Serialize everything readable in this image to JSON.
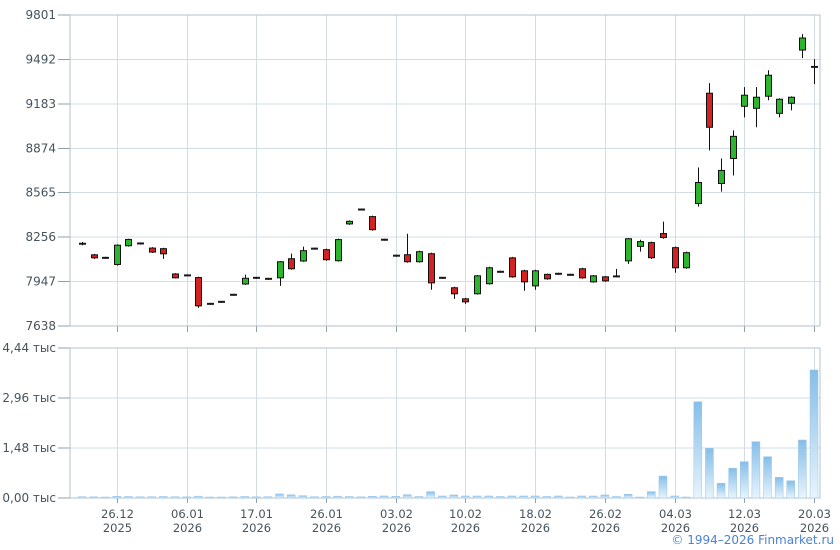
{
  "copyright": "© 1994–2026 Finmarket.ru",
  "colors": {
    "background": "#ffffff",
    "grid": "#d3dde4",
    "border": "#b3c3ce",
    "tick": "#8da0ab",
    "axis_text": "#46535c",
    "up": "#2db52d",
    "down": "#d32222",
    "wick": "#111111",
    "doji": "#1a1a1a",
    "volume_top": "#85bee9",
    "volume_bottom": "#e8f4fc",
    "volume_stroke": "#9dc6e8",
    "copyright_text": "#4a82d9"
  },
  "chart_data": {
    "type": "candlestick",
    "subtype": "price-panel-with-volume-panel",
    "title": "",
    "legend": [],
    "grid": true,
    "price_axis": {
      "max": 9801,
      "min": 7638,
      "ticks": [
        9801,
        9492,
        9183,
        8874,
        8565,
        8256,
        7947,
        7638
      ]
    },
    "volume_axis": {
      "max": 4440,
      "ticks": [
        {
          "label": "4,44 тыс",
          "value": 4440
        },
        {
          "label": "2,96 тыс",
          "value": 2960
        },
        {
          "label": "1,48 тыс",
          "value": 1480
        },
        {
          "label": "0,00 тыс",
          "value": 0
        }
      ]
    },
    "x_ticks": [
      {
        "line1": "26.12",
        "line2": "2025",
        "candle_index": 3
      },
      {
        "line1": "06.01",
        "line2": "2026",
        "candle_index": 9
      },
      {
        "line1": "17.01",
        "line2": "2026",
        "candle_index": 15
      },
      {
        "line1": "26.01",
        "line2": "2026",
        "candle_index": 21
      },
      {
        "line1": "03.02",
        "line2": "2026",
        "candle_index": 27
      },
      {
        "line1": "10.02",
        "line2": "2026",
        "candle_index": 33
      },
      {
        "line1": "18.02",
        "line2": "2026",
        "candle_index": 39
      },
      {
        "line1": "26.02",
        "line2": "2026",
        "candle_index": 45
      },
      {
        "line1": "04.03",
        "line2": "2026",
        "candle_index": 51
      },
      {
        "line1": "12.03",
        "line2": "2026",
        "candle_index": 57
      },
      {
        "line1": "20.03",
        "line2": "2026",
        "candle_index": 63
      }
    ],
    "candles_format": "[open, high, low, close, volume]",
    "candles": [
      [
        8210,
        8222,
        8200,
        8210,
        40
      ],
      [
        8133,
        8140,
        8105,
        8112,
        35
      ],
      [
        8112,
        8120,
        8104,
        8112,
        30
      ],
      [
        8066,
        8206,
        8058,
        8200,
        50
      ],
      [
        8196,
        8245,
        8190,
        8240,
        45
      ],
      [
        8212,
        8220,
        8204,
        8212,
        35
      ],
      [
        8180,
        8187,
        8146,
        8152,
        40
      ],
      [
        8176,
        8182,
        8105,
        8140,
        45
      ],
      [
        8000,
        8006,
        7968,
        7973,
        40
      ],
      [
        7990,
        7997,
        7983,
        7990,
        35
      ],
      [
        7975,
        7981,
        7764,
        7778,
        55
      ],
      [
        7792,
        7799,
        7785,
        7792,
        30
      ],
      [
        7806,
        7813,
        7799,
        7806,
        30
      ],
      [
        7855,
        7862,
        7848,
        7855,
        35
      ],
      [
        7930,
        7995,
        7924,
        7970,
        45
      ],
      [
        7973,
        7980,
        7966,
        7973,
        35
      ],
      [
        7966,
        7973,
        7959,
        7966,
        40
      ],
      [
        7973,
        8090,
        7917,
        8085,
        120
      ],
      [
        8106,
        8141,
        8029,
        8036,
        95
      ],
      [
        8090,
        8190,
        8084,
        8162,
        70
      ],
      [
        8176,
        8183,
        8169,
        8176,
        40
      ],
      [
        8169,
        8176,
        8092,
        8099,
        45
      ],
      [
        8092,
        8246,
        8086,
        8239,
        55
      ],
      [
        8348,
        8373,
        8341,
        8366,
        45
      ],
      [
        8448,
        8455,
        8441,
        8448,
        35
      ],
      [
        8399,
        8406,
        8301,
        8308,
        50
      ],
      [
        8238,
        8245,
        8231,
        8238,
        60
      ],
      [
        8127,
        8134,
        8120,
        8127,
        50
      ],
      [
        8134,
        8280,
        8078,
        8085,
        100
      ],
      [
        8085,
        8161,
        8079,
        8155,
        45
      ],
      [
        8141,
        8148,
        7890,
        7938,
        190
      ],
      [
        7973,
        7980,
        7966,
        7973,
        60
      ],
      [
        7904,
        7911,
        7827,
        7862,
        90
      ],
      [
        7827,
        7834,
        7792,
        7806,
        60
      ],
      [
        7862,
        7993,
        7856,
        7987,
        60
      ],
      [
        7932,
        8050,
        7926,
        8043,
        60
      ],
      [
        8015,
        8022,
        8008,
        8015,
        45
      ],
      [
        8112,
        8119,
        7974,
        7980,
        60
      ],
      [
        8022,
        8029,
        7883,
        7945,
        60
      ],
      [
        7917,
        8029,
        7890,
        8022,
        60
      ],
      [
        7997,
        8003,
        7960,
        7966,
        45
      ],
      [
        8001,
        8008,
        7994,
        8001,
        60
      ],
      [
        7994,
        8001,
        7987,
        7994,
        30
      ],
      [
        8036,
        8043,
        7967,
        7973,
        60
      ],
      [
        7945,
        7993,
        7939,
        7987,
        60
      ],
      [
        7980,
        7986,
        7945,
        7952,
        90
      ],
      [
        7983,
        8035,
        7976,
        7983,
        45
      ],
      [
        8091,
        8250,
        8070,
        8245,
        110
      ],
      [
        8192,
        8238,
        8155,
        8225,
        30
      ],
      [
        8218,
        8225,
        8104,
        8113,
        190
      ],
      [
        8281,
        8364,
        8245,
        8253,
        650
      ],
      [
        8183,
        8190,
        8008,
        8043,
        60
      ],
      [
        8043,
        8155,
        8036,
        8148,
        30
      ],
      [
        8490,
        8740,
        8468,
        8636,
        2850
      ],
      [
        9257,
        9327,
        8859,
        9020,
        1470
      ],
      [
        8629,
        8803,
        8573,
        8720,
        435
      ],
      [
        8803,
        8999,
        8685,
        8957,
        880
      ],
      [
        9166,
        9299,
        9089,
        9243,
        1075
      ],
      [
        9152,
        9299,
        9020,
        9229,
        1667
      ],
      [
        9236,
        9417,
        9208,
        9382,
        1223
      ],
      [
        9117,
        9222,
        9089,
        9215,
        613
      ],
      [
        9187,
        9235,
        9138,
        9229,
        512
      ],
      [
        9557,
        9668,
        9501,
        9641,
        1717
      ],
      [
        9440,
        9494,
        9320,
        9440,
        3790
      ]
    ]
  }
}
